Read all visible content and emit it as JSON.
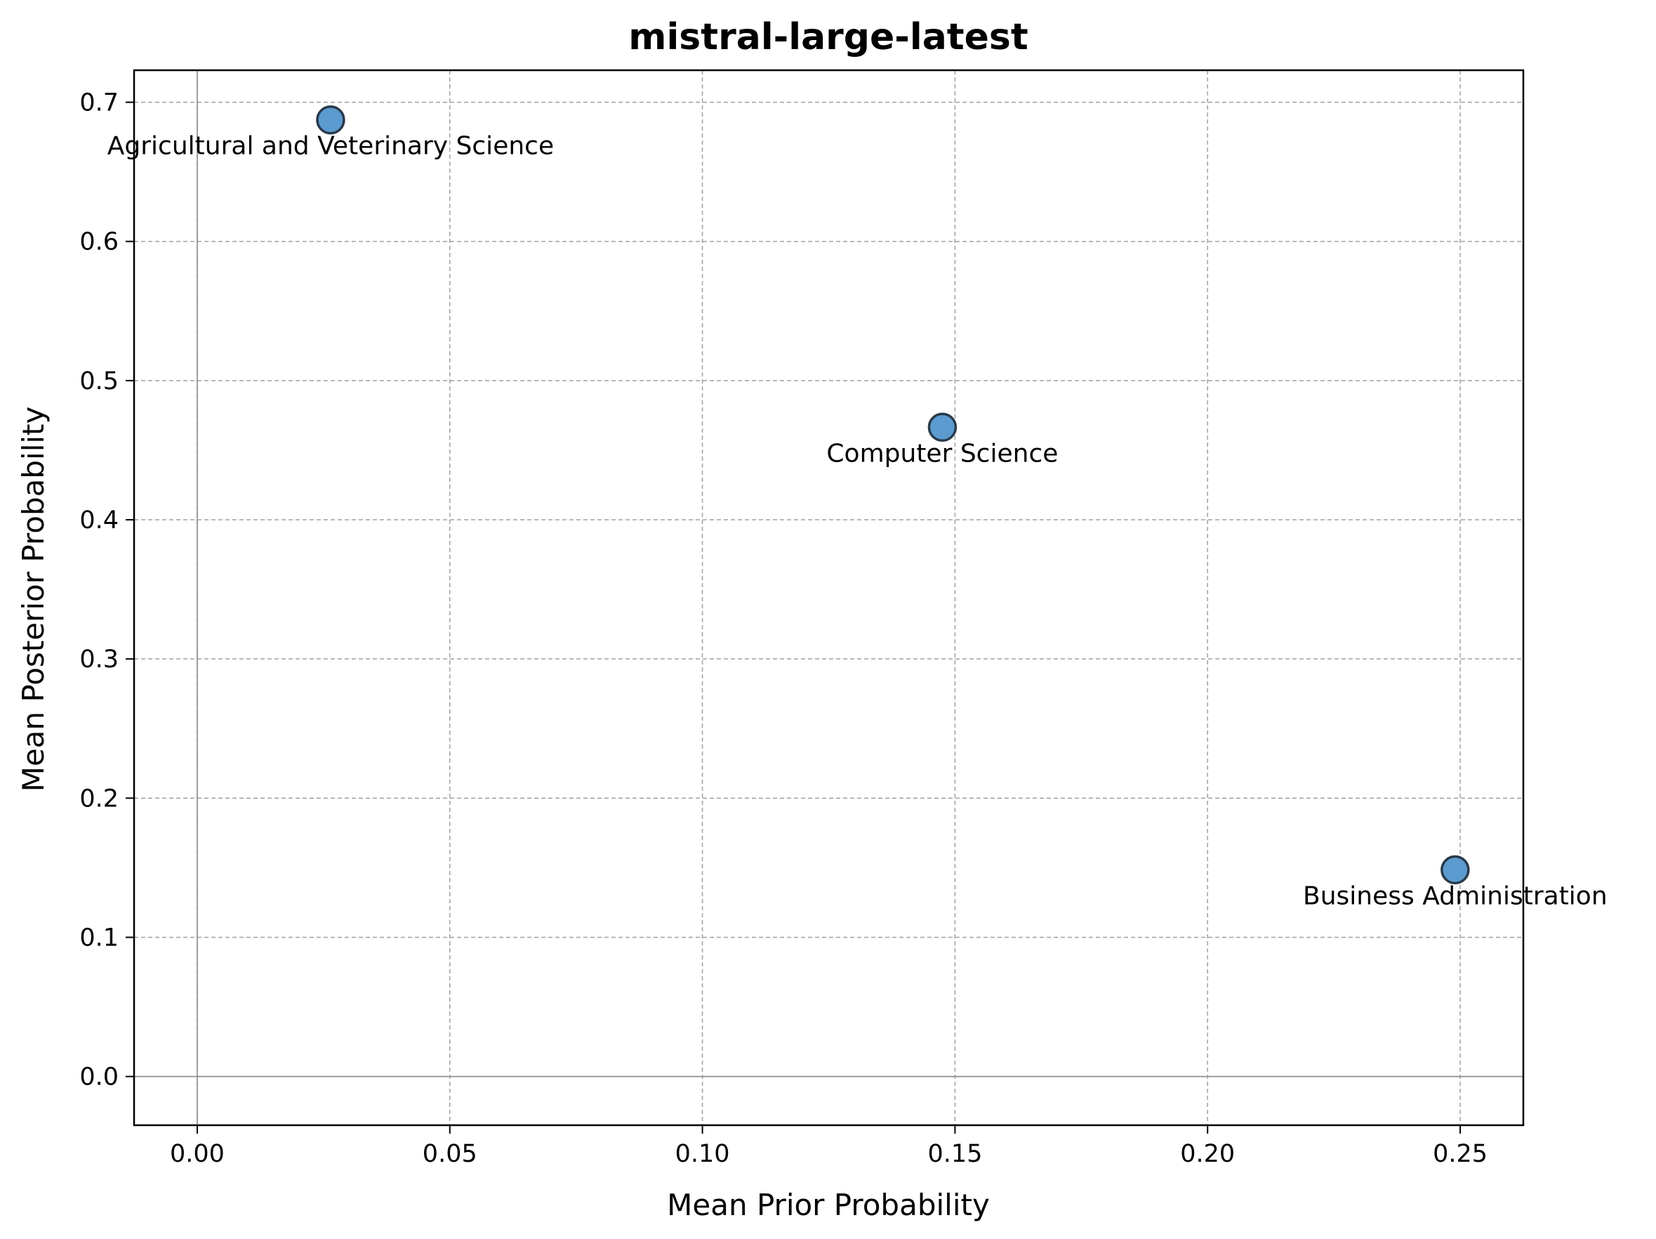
{
  "chart_data": {
    "type": "scatter",
    "title": "mistral-large-latest",
    "xlabel": "Mean Prior Probability",
    "ylabel": "Mean Posterior Probability",
    "xlim": [
      -0.0125,
      0.2625
    ],
    "ylim": [
      -0.035,
      0.723
    ],
    "xticks": [
      0.0,
      0.05,
      0.1,
      0.15,
      0.2,
      0.25
    ],
    "xtick_labels": [
      "0.00",
      "0.05",
      "0.10",
      "0.15",
      "0.20",
      "0.25"
    ],
    "yticks": [
      0.0,
      0.1,
      0.2,
      0.3,
      0.4,
      0.5,
      0.6,
      0.7
    ],
    "ytick_labels": [
      "0.0",
      "0.1",
      "0.2",
      "0.3",
      "0.4",
      "0.5",
      "0.6",
      "0.7"
    ],
    "grid": true,
    "zero_lines": true,
    "marker_color": "#5b9bd0",
    "marker_edge_color": "#2a3a4a",
    "points": [
      {
        "label": "Agricultural and Veterinary Science",
        "x": 0.0264,
        "y": 0.6873
      },
      {
        "label": "Computer Science",
        "x": 0.1475,
        "y": 0.4665
      },
      {
        "label": "Business Administration",
        "x": 0.249,
        "y": 0.1485
      }
    ]
  }
}
